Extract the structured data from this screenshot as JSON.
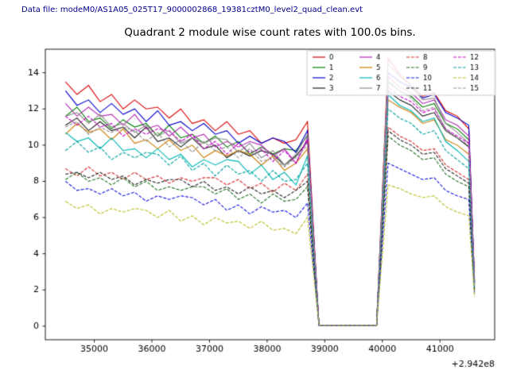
{
  "header": {
    "data_file_label": "Data file: modeM0/AS1A05_025T17_9000002868_19381cztM0_level2_quad_clean.evt",
    "data_file_color": "#00008b"
  },
  "chart_data": {
    "type": "line",
    "title": "Quadrant 2 module wise count rates with 100.0s bins.",
    "xlabel": "",
    "ylabel": "",
    "x_offset_text": "+2.942e8",
    "xlim": [
      34150,
      41950
    ],
    "ylim": [
      -0.75,
      15.3
    ],
    "xticks": [
      35000,
      36000,
      37000,
      38000,
      39000,
      40000,
      41000
    ],
    "yticks": [
      0,
      2,
      4,
      6,
      8,
      10,
      12,
      14
    ],
    "grid": false,
    "legend": {
      "position": "upper right",
      "ncol": 4
    },
    "x": [
      34500,
      34700,
      34900,
      35100,
      35300,
      35500,
      35700,
      35900,
      36100,
      36300,
      36500,
      36700,
      36900,
      37100,
      37300,
      37500,
      37700,
      37900,
      38100,
      38300,
      38500,
      38700,
      38900,
      39100,
      39300,
      39500,
      39700,
      39900,
      40100,
      40300,
      40500,
      40700,
      40900,
      41100,
      41300,
      41500,
      41600
    ],
    "series": [
      {
        "name": "0",
        "color": "#dc0000",
        "dash": false,
        "values": [
          13.5,
          12.8,
          13.3,
          12.4,
          12.8,
          12.0,
          12.5,
          12.0,
          12.1,
          11.5,
          12.0,
          11.2,
          11.4,
          10.8,
          11.3,
          10.6,
          10.8,
          10.1,
          10.4,
          10.1,
          10.3,
          11.3,
          0.05,
          0.05,
          0.05,
          0.05,
          0.05,
          0.05,
          14.8,
          13.9,
          13.3,
          12.7,
          12.9,
          11.9,
          11.6,
          10.9,
          2.6
        ]
      },
      {
        "name": "1",
        "color": "#007f00",
        "dash": false,
        "values": [
          11.6,
          12.1,
          11.3,
          11.5,
          10.9,
          11.4,
          11.0,
          11.2,
          10.5,
          11.1,
          10.4,
          10.6,
          10.1,
          10.5,
          9.9,
          10.2,
          9.5,
          9.9,
          9.5,
          9.8,
          9.7,
          10.5,
          0.05,
          0.05,
          0.05,
          0.05,
          0.05,
          0.05,
          13.5,
          13.0,
          12.7,
          12.1,
          12.3,
          11.2,
          10.9,
          10.3,
          2.4
        ]
      },
      {
        "name": "2",
        "color": "#0000cd",
        "dash": false,
        "values": [
          13.0,
          12.2,
          12.5,
          11.8,
          12.3,
          11.7,
          12.0,
          11.3,
          11.9,
          11.1,
          11.3,
          10.8,
          11.2,
          10.6,
          10.8,
          10.1,
          10.5,
          10.1,
          10.4,
          10.2,
          9.6,
          10.8,
          0.05,
          0.05,
          0.05,
          0.05,
          0.05,
          0.05,
          14.0,
          13.5,
          13.2,
          12.6,
          12.8,
          11.8,
          11.5,
          11.1,
          2.5
        ]
      },
      {
        "name": "3",
        "color": "#1a1a1a",
        "dash": false,
        "values": [
          11.1,
          11.5,
          10.8,
          11.3,
          10.8,
          11.0,
          10.4,
          11.0,
          10.2,
          10.4,
          9.9,
          10.4,
          9.8,
          10.0,
          9.3,
          9.7,
          9.4,
          9.7,
          9.5,
          8.9,
          9.4,
          10.2,
          0.05,
          0.05,
          0.05,
          0.05,
          0.05,
          0.05,
          13.0,
          12.5,
          12.2,
          11.6,
          11.8,
          10.8,
          10.4,
          9.9,
          2.3
        ]
      },
      {
        "name": "4",
        "color": "#b428b4",
        "dash": false,
        "values": [
          12.3,
          11.6,
          12.1,
          11.6,
          11.7,
          11.1,
          11.7,
          10.9,
          11.1,
          10.5,
          11.0,
          10.4,
          10.6,
          9.9,
          10.2,
          9.9,
          10.2,
          10.0,
          9.4,
          9.8,
          9.0,
          10.4,
          0.05,
          0.05,
          0.05,
          0.05,
          0.05,
          0.05,
          13.8,
          13.2,
          12.9,
          12.3,
          12.5,
          11.4,
          11.1,
          10.5,
          2.4
        ]
      },
      {
        "name": "5",
        "color": "#cc7a00",
        "dash": false,
        "values": [
          10.6,
          11.2,
          10.7,
          10.9,
          10.3,
          10.9,
          10.1,
          10.3,
          9.8,
          10.3,
          9.7,
          10.0,
          9.3,
          9.7,
          9.4,
          9.7,
          9.5,
          8.9,
          9.4,
          8.6,
          9.0,
          9.8,
          0.05,
          0.05,
          0.05,
          0.05,
          0.05,
          0.05,
          12.5,
          12.1,
          11.8,
          11.2,
          11.4,
          10.3,
          10.0,
          9.5,
          2.2
        ]
      },
      {
        "name": "6",
        "color": "#00b5b5",
        "dash": false,
        "values": [
          10.7,
          10.2,
          10.4,
          9.8,
          10.4,
          9.7,
          9.8,
          9.3,
          9.8,
          9.2,
          9.5,
          8.8,
          9.2,
          8.9,
          9.2,
          9.1,
          8.4,
          8.9,
          8.1,
          8.5,
          7.8,
          9.4,
          0.05,
          0.05,
          0.05,
          0.05,
          0.05,
          0.05,
          12.8,
          12.2,
          11.9,
          11.3,
          11.5,
          10.2,
          9.7,
          9.1,
          2.1
        ]
      },
      {
        "name": "7",
        "color": "#8c8c8c",
        "dash": false,
        "values": [
          11.6,
          11.8,
          11.2,
          11.7,
          11.0,
          11.2,
          10.7,
          11.1,
          10.5,
          10.8,
          10.1,
          10.4,
          10.1,
          10.4,
          10.3,
          9.6,
          10.1,
          9.3,
          9.7,
          8.9,
          9.5,
          10.6,
          0.05,
          0.05,
          0.05,
          0.05,
          0.05,
          0.05,
          14.5,
          13.8,
          13.3,
          12.5,
          12.6,
          11.2,
          10.7,
          10.1,
          2.4
        ]
      },
      {
        "name": "8",
        "color": "#d62728",
        "dash": true,
        "values": [
          8.7,
          8.3,
          8.8,
          8.3,
          8.5,
          8.1,
          8.5,
          8.1,
          8.3,
          7.9,
          8.2,
          8.0,
          8.2,
          8.2,
          7.8,
          8.1,
          7.6,
          7.9,
          7.4,
          7.9,
          7.5,
          8.4,
          0.05,
          0.05,
          0.05,
          0.05,
          0.05,
          0.05,
          11.0,
          10.5,
          10.2,
          9.7,
          9.8,
          8.9,
          8.5,
          8.1,
          2.0
        ]
      },
      {
        "name": "9",
        "color": "#1f6f1f",
        "dash": true,
        "values": [
          8.1,
          8.5,
          8.0,
          8.2,
          7.8,
          8.2,
          7.7,
          8.0,
          7.5,
          7.7,
          7.5,
          7.7,
          7.7,
          7.3,
          7.6,
          7.0,
          7.3,
          6.8,
          7.3,
          6.9,
          7.0,
          7.7,
          0.05,
          0.05,
          0.05,
          0.05,
          0.05,
          0.05,
          10.5,
          10.0,
          9.7,
          9.2,
          9.3,
          8.4,
          8.0,
          7.7,
          1.9
        ]
      },
      {
        "name": "10",
        "color": "#1515e0",
        "dash": true,
        "values": [
          8.0,
          7.5,
          7.6,
          7.3,
          7.6,
          7.2,
          7.4,
          6.9,
          7.2,
          7.0,
          7.2,
          7.1,
          6.7,
          7.0,
          6.4,
          6.7,
          6.2,
          6.6,
          6.3,
          6.4,
          6.0,
          6.8,
          0.05,
          0.05,
          0.05,
          0.05,
          0.05,
          0.05,
          9.0,
          8.7,
          8.4,
          8.1,
          8.2,
          7.5,
          7.2,
          7.0,
          1.8
        ]
      },
      {
        "name": "11",
        "color": "#222222",
        "dash": true,
        "values": [
          8.4,
          8.5,
          8.2,
          8.5,
          8.1,
          8.3,
          7.8,
          8.1,
          7.9,
          8.1,
          8.1,
          7.7,
          8.0,
          7.5,
          7.7,
          7.3,
          7.7,
          7.3,
          7.5,
          7.1,
          7.5,
          8.0,
          0.05,
          0.05,
          0.05,
          0.05,
          0.05,
          0.05,
          10.8,
          10.3,
          10.0,
          9.5,
          9.6,
          8.7,
          8.3,
          7.9,
          2.0
        ]
      },
      {
        "name": "12",
        "color": "#cc00cc",
        "dash": true,
        "values": [
          11.6,
          11.1,
          11.6,
          11.0,
          11.2,
          10.5,
          10.9,
          10.6,
          10.9,
          10.8,
          10.2,
          10.6,
          9.8,
          10.2,
          9.5,
          10.1,
          9.6,
          9.8,
          9.1,
          9.7,
          9.0,
          10.3,
          0.05,
          0.05,
          0.05,
          0.05,
          0.05,
          0.05,
          13.2,
          12.7,
          12.4,
          11.8,
          12.0,
          10.9,
          10.5,
          10.1,
          2.4
        ]
      },
      {
        "name": "13",
        "color": "#00a0a0",
        "dash": true,
        "values": [
          9.7,
          10.2,
          9.6,
          9.9,
          9.2,
          9.6,
          9.3,
          9.6,
          9.5,
          8.9,
          9.4,
          8.6,
          9.0,
          8.3,
          8.9,
          8.4,
          8.6,
          8.0,
          8.6,
          8.0,
          8.1,
          9.0,
          0.05,
          0.05,
          0.05,
          0.05,
          0.05,
          0.05,
          12.0,
          11.5,
          11.2,
          10.6,
          10.8,
          9.7,
          9.2,
          8.7,
          2.1
        ]
      },
      {
        "name": "14",
        "color": "#bcbd22",
        "dash": true,
        "values": [
          6.9,
          6.5,
          6.7,
          6.2,
          6.5,
          6.3,
          6.5,
          6.4,
          6.0,
          6.4,
          5.8,
          6.1,
          5.6,
          6.0,
          5.7,
          5.8,
          5.4,
          5.8,
          5.3,
          5.4,
          5.1,
          6.0,
          0.05,
          0.05,
          0.05,
          0.05,
          0.05,
          0.05,
          7.8,
          7.6,
          7.3,
          7.1,
          7.2,
          6.6,
          6.3,
          6.1,
          1.6
        ]
      },
      {
        "name": "15",
        "color": "#909090",
        "dash": true,
        "values": [
          11.0,
          11.3,
          10.6,
          11.0,
          10.7,
          11.0,
          10.8,
          10.2,
          10.7,
          9.9,
          10.3,
          9.6,
          10.2,
          9.7,
          9.9,
          9.3,
          9.8,
          9.1,
          9.3,
          8.8,
          9.3,
          10.0,
          0.05,
          0.05,
          0.05,
          0.05,
          0.05,
          0.05,
          13.6,
          13.0,
          12.6,
          11.9,
          12.1,
          10.9,
          10.4,
          10.0,
          2.3
        ]
      }
    ]
  }
}
